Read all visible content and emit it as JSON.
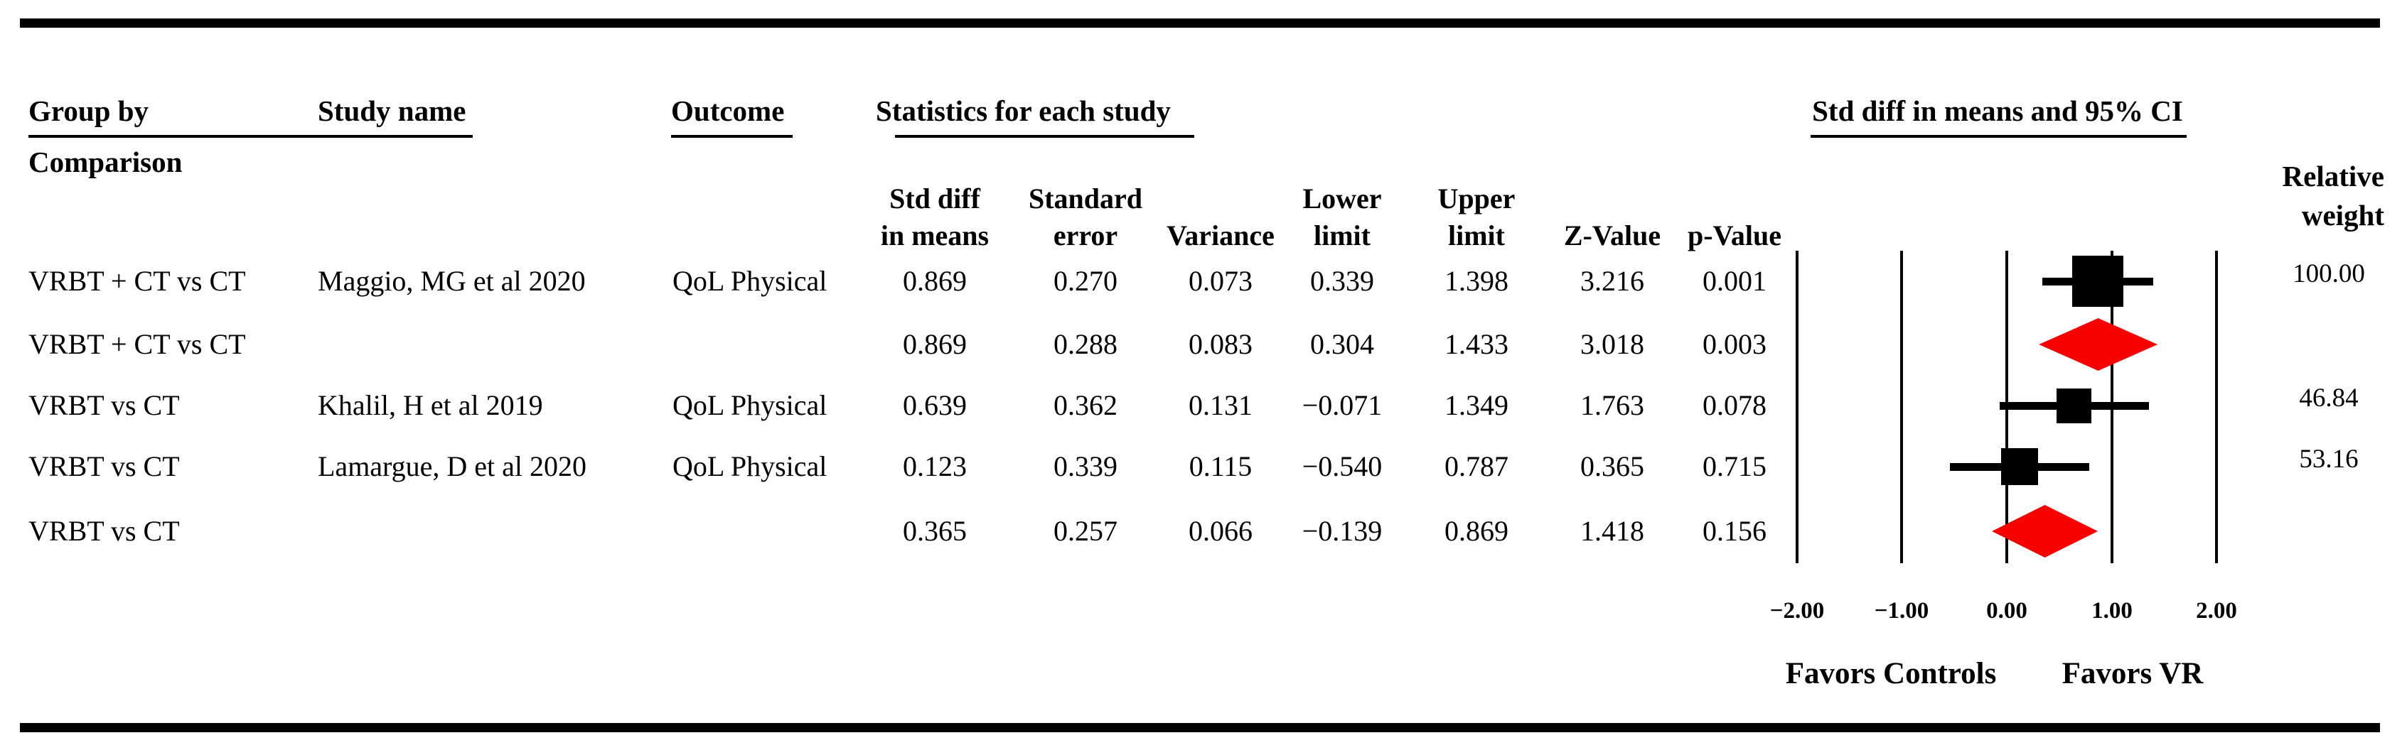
{
  "columns": {
    "group_by": "Group by",
    "comparison": "Comparison",
    "study_name": "Study name",
    "outcome": "Outcome",
    "stats_group": "Statistics for each study",
    "ci_group": "Std diff in means and 95% CI",
    "relative": "Relative",
    "weight": "weight",
    "std_diff_1": "Std diff",
    "std_diff_2": "in means",
    "std_err_1": "Standard",
    "std_err_2": "error",
    "variance": "Variance",
    "lower_1": "Lower",
    "lower_2": "limit",
    "upper_1": "Upper",
    "upper_2": "limit",
    "z_value": "Z-Value",
    "p_value": "p-Value"
  },
  "rows": [
    {
      "group": "VRBT + CT vs CT",
      "study": "Maggio, MG et al 2020",
      "outcome": "QoL Physical",
      "std_diff": "0.869",
      "std_err": "0.270",
      "variance": "0.073",
      "lower": "0.339",
      "upper": "1.398",
      "z": "3.216",
      "p": "0.001",
      "weight": "100.00"
    },
    {
      "group": "VRBT + CT vs CT",
      "study": "",
      "outcome": "",
      "std_diff": "0.869",
      "std_err": "0.288",
      "variance": "0.083",
      "lower": "0.304",
      "upper": "1.433",
      "z": "3.018",
      "p": "0.003",
      "weight": ""
    },
    {
      "group": "VRBT vs CT",
      "study": "Khalil, H et al 2019",
      "outcome": "QoL Physical",
      "std_diff": "0.639",
      "std_err": "0.362",
      "variance": "0.131",
      "lower": "−0.071",
      "upper": "1.349",
      "z": "1.763",
      "p": "0.078",
      "weight": "46.84"
    },
    {
      "group": "VRBT vs CT",
      "study": "Lamargue, D et al 2020",
      "outcome": "QoL Physical",
      "std_diff": "0.123",
      "std_err": "0.339",
      "variance": "0.115",
      "lower": "−0.540",
      "upper": "0.787",
      "z": "0.365",
      "p": "0.715",
      "weight": "53.16"
    },
    {
      "group": "VRBT vs CT",
      "study": "",
      "outcome": "",
      "std_diff": "0.365",
      "std_err": "0.257",
      "variance": "0.066",
      "lower": "−0.139",
      "upper": "0.869",
      "z": "1.418",
      "p": "0.156",
      "weight": ""
    }
  ],
  "chart_data": {
    "type": "scatter",
    "variant": "forest-plot",
    "title": "Std diff in means and 95% CI",
    "xlim": [
      -2,
      2
    ],
    "x_ticks": [
      -2,
      -1,
      0,
      1,
      2
    ],
    "x_tick_labels": [
      "−2.00",
      "−1.00",
      "0.00",
      "1.00",
      "2.00"
    ],
    "x_axis_note_left": "Favors Controls",
    "x_axis_note_right": "Favors VR",
    "grid": true,
    "colors": {
      "study_marker": "#000000",
      "summary_marker": "#F90000",
      "grid": "#000000"
    },
    "points": [
      {
        "row": 0,
        "kind": "study",
        "label": "Maggio, MG et al 2020",
        "value": 0.869,
        "ci": [
          0.339,
          1.398
        ],
        "weight": 100.0
      },
      {
        "row": 1,
        "kind": "summary",
        "label": "VRBT + CT vs CT pooled",
        "value": 0.869,
        "ci": [
          0.304,
          1.433
        ]
      },
      {
        "row": 2,
        "kind": "study",
        "label": "Khalil, H et al 2019",
        "value": 0.639,
        "ci": [
          -0.071,
          1.349
        ],
        "weight": 46.84
      },
      {
        "row": 3,
        "kind": "study",
        "label": "Lamargue, D et al 2020",
        "value": 0.123,
        "ci": [
          -0.54,
          0.787
        ],
        "weight": 53.16
      },
      {
        "row": 4,
        "kind": "summary",
        "label": "VRBT vs CT pooled",
        "value": 0.365,
        "ci": [
          -0.139,
          0.869
        ]
      }
    ]
  }
}
